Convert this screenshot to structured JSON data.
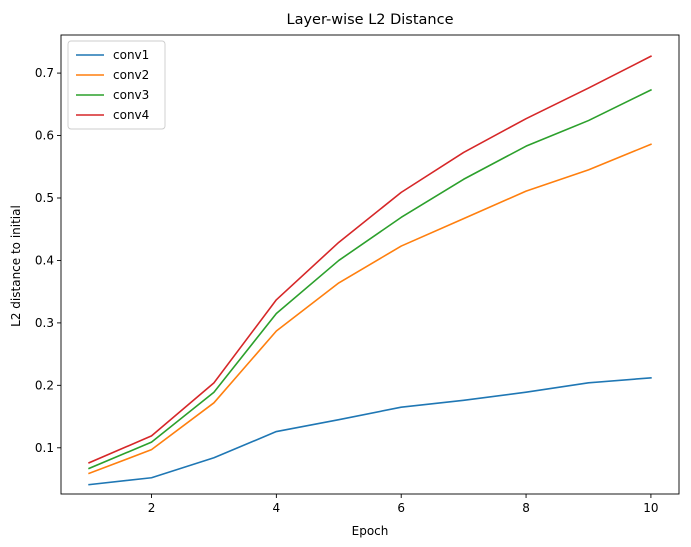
{
  "chart_data": {
    "type": "line",
    "title": "Layer-wise L2 Distance",
    "xlabel": "Epoch",
    "ylabel": "L2 distance to initial",
    "x": [
      1,
      2,
      3,
      4,
      5,
      6,
      7,
      8,
      9,
      10
    ],
    "xlim": [
      0.55,
      10.45
    ],
    "ylim": [
      0.026,
      0.761
    ],
    "xticks": [
      2,
      4,
      6,
      8,
      10
    ],
    "yticks": [
      0.1,
      0.2,
      0.3,
      0.4,
      0.5,
      0.6,
      0.7
    ],
    "grid": false,
    "legend_position": "top-left",
    "series": [
      {
        "name": "conv1",
        "color": "#1f77b4",
        "values": [
          0.041,
          0.052,
          0.084,
          0.126,
          0.145,
          0.165,
          0.176,
          0.189,
          0.204,
          0.212
        ]
      },
      {
        "name": "conv2",
        "color": "#ff7f0e",
        "values": [
          0.059,
          0.097,
          0.172,
          0.287,
          0.364,
          0.423,
          0.467,
          0.511,
          0.545,
          0.586
        ]
      },
      {
        "name": "conv3",
        "color": "#2ca02c",
        "values": [
          0.067,
          0.109,
          0.189,
          0.315,
          0.4,
          0.469,
          0.53,
          0.583,
          0.624,
          0.673
        ]
      },
      {
        "name": "conv4",
        "color": "#d62728",
        "values": [
          0.076,
          0.119,
          0.204,
          0.337,
          0.429,
          0.509,
          0.573,
          0.627,
          0.676,
          0.727
        ]
      }
    ]
  }
}
